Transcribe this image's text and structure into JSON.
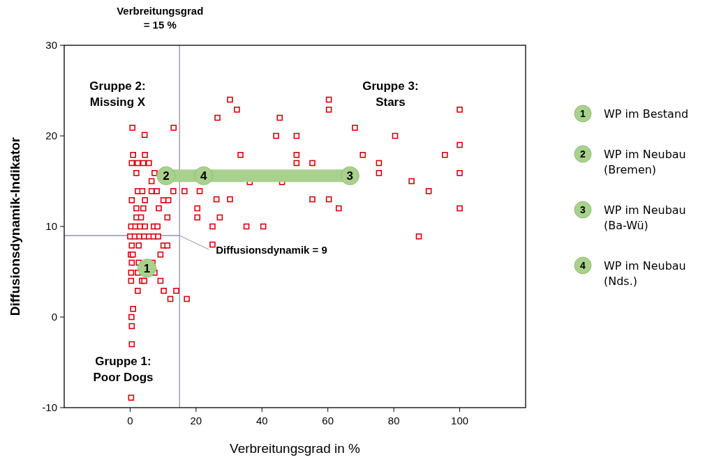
{
  "chart_data": {
    "type": "scatter",
    "xlabel": "Verbreitungsgrad in %",
    "ylabel": "Diffusionsdynamik-Indikator",
    "xlim": [
      -20,
      120
    ],
    "xticks": [
      0,
      20,
      40,
      60,
      80,
      100
    ],
    "ylim": [
      -10,
      30
    ],
    "yticks": [
      -10,
      0,
      10,
      20,
      30
    ],
    "grid": false,
    "legend": "right",
    "series": [
      {
        "marker": "square",
        "color": "#d9000d",
        "x": [
          0.7,
          13.2,
          4.4,
          0.9,
          4.5,
          0.5,
          2.3,
          4.0,
          5.7,
          1.9,
          7.4,
          6.5,
          2.3,
          3.7,
          6.5,
          8.1,
          13.1,
          16.5,
          0.5,
          4.5,
          10.1,
          11.6,
          1.9,
          4.0,
          8.7,
          1.9,
          3.3,
          11.3,
          0.3,
          1.6,
          3.0,
          4.5,
          7.2,
          8.3,
          0,
          1.4,
          2.8,
          4.3,
          5.7,
          7.1,
          8.5,
          0.5,
          2.6,
          10.1,
          11.3,
          0.2,
          0.8,
          9.2,
          0.5,
          2.6,
          6.8,
          0.3,
          2.3,
          7.4,
          0.3,
          3.6,
          4.3,
          9.2,
          2.3,
          10.2,
          14.0,
          12.2,
          17.2,
          0.9,
          0.4,
          0.5,
          0.5,
          0.3,
          30.3,
          32.4,
          26.5,
          45.4,
          60.3,
          60.3,
          68.2,
          44.3,
          50.5,
          33.5,
          50.5,
          50.5,
          55.3,
          36.3,
          46.1,
          21.1,
          26.2,
          30.3,
          55.3,
          60.3,
          63.3,
          20.4,
          20.4,
          27.2,
          25.0,
          35.3,
          40.4,
          25.0,
          100,
          80.4,
          100,
          70.6,
          95.5,
          75.5,
          75.5,
          100,
          85.4,
          90.6,
          100,
          87.6
        ],
        "values": [
          20.9,
          20.9,
          20.1,
          17.9,
          17.9,
          17.0,
          17.0,
          17.0,
          17.0,
          15.9,
          15.9,
          15.0,
          13.9,
          13.9,
          13.9,
          13.9,
          13.9,
          13.9,
          12.9,
          12.9,
          12.9,
          12.9,
          12.0,
          12.0,
          12.0,
          11.0,
          11.0,
          11.0,
          10.0,
          10.0,
          10.0,
          10.0,
          10.0,
          10.0,
          8.9,
          8.9,
          8.9,
          8.9,
          8.9,
          8.9,
          8.9,
          7.9,
          7.9,
          7.9,
          7.9,
          6.9,
          6.9,
          6.9,
          6.0,
          6.0,
          6.0,
          4.9,
          4.9,
          4.9,
          4.0,
          4.0,
          4.0,
          4.0,
          2.9,
          2.9,
          2.9,
          2.0,
          2.0,
          0.9,
          0,
          -1.0,
          -3.0,
          -8.9,
          24.0,
          22.9,
          22.0,
          22.0,
          24.0,
          22.9,
          20.9,
          20.0,
          20.0,
          17.9,
          17.9,
          17.0,
          17.0,
          14.9,
          14.9,
          13.9,
          13.0,
          13.0,
          13.0,
          13.0,
          12.0,
          12.0,
          11.0,
          11.0,
          10.0,
          10.0,
          10.0,
          8.0,
          22.9,
          20.0,
          19.0,
          17.9,
          17.9,
          17.0,
          15.9,
          15.9,
          15.0,
          13.9,
          12.0,
          8.9
        ]
      },
      {
        "type": "line",
        "color": "#a9d18e",
        "line_style": "solid",
        "marker": "none",
        "x": [
          10.9,
          66.7
        ],
        "values": [
          15.6,
          15.6
        ]
      },
      {
        "marker": "circle",
        "name": "WP im Bestand",
        "color": "#a9d18e",
        "x": [
          5.1
        ],
        "values": [
          5.4
        ]
      },
      {
        "marker": "circle",
        "name": "WP im Neubau\n(Bremen)",
        "color": "#a9d18e",
        "x": [
          10.9
        ],
        "values": [
          15.6
        ]
      },
      {
        "marker": "circle",
        "name": "WP im Neubau\n(Ba-Wü)",
        "color": "#a9d18e",
        "x": [
          66.7
        ],
        "values": [
          15.6
        ]
      },
      {
        "marker": "circle",
        "name": "WP im Neubau\n(Nds.)",
        "color": "#a9d18e",
        "x": [
          22.3
        ],
        "values": [
          15.6
        ]
      }
    ],
    "ref_lines": [
      {
        "axis": "x",
        "value": 15,
        "label": "Verbreitungsgrad\n= 15 %",
        "color": "#8f8fb8"
      },
      {
        "axis": "y",
        "value": 9,
        "label": "Diffusionsdynamik = 9",
        "color": "#8f8fb8"
      }
    ],
    "annotations": [
      "Gruppe 2:\nMissing X",
      "Gruppe 3:\nStars",
      "Gruppe 1:\nPoor Dogs",
      {
        "text": "1",
        "x": 5.1,
        "y": 5.4
      },
      {
        "text": "2",
        "x": 10.9,
        "y": 15.6
      },
      {
        "text": "3",
        "x": 66.7,
        "y": 15.6
      },
      {
        "text": "4",
        "x": 22.3,
        "y": 15.6
      }
    ]
  }
}
